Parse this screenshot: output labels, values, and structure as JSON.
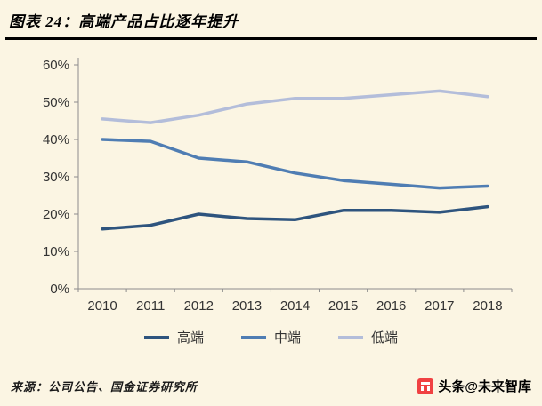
{
  "header": {
    "title": "图表 24：高端产品占比逐年提升"
  },
  "chart_data": {
    "type": "line",
    "title": "高端产品占比逐年提升",
    "figure_label": "图表 24",
    "categories": [
      "2010",
      "2011",
      "2012",
      "2013",
      "2014",
      "2015",
      "2016",
      "2017",
      "2018"
    ],
    "series": [
      {
        "name": "高端",
        "color": "#2E547E",
        "values": [
          16,
          17,
          20,
          18.8,
          18.5,
          21,
          21,
          20.5,
          22
        ]
      },
      {
        "name": "中端",
        "color": "#4F7DB3",
        "values": [
          40,
          39.5,
          35,
          34,
          31,
          29,
          28,
          27,
          27.5
        ]
      },
      {
        "name": "低端",
        "color": "#B3BDDA",
        "values": [
          45.5,
          44.5,
          46.5,
          49.5,
          51,
          51,
          52,
          53,
          51.5
        ]
      }
    ],
    "ylim": [
      0,
      60
    ],
    "ytick_step": 10,
    "ytick_suffix": "%",
    "xlabel": "",
    "ylabel": "",
    "grid": false,
    "legend_position": "bottom"
  },
  "footer": {
    "source": "来源：公司公告、国金证券研究所",
    "watermark": "头条@未来智库"
  },
  "colors": {
    "background": "#FBF5E3",
    "axis": "#8C8C8C",
    "title_rule": "#000000",
    "logo_red": "#F04142"
  }
}
